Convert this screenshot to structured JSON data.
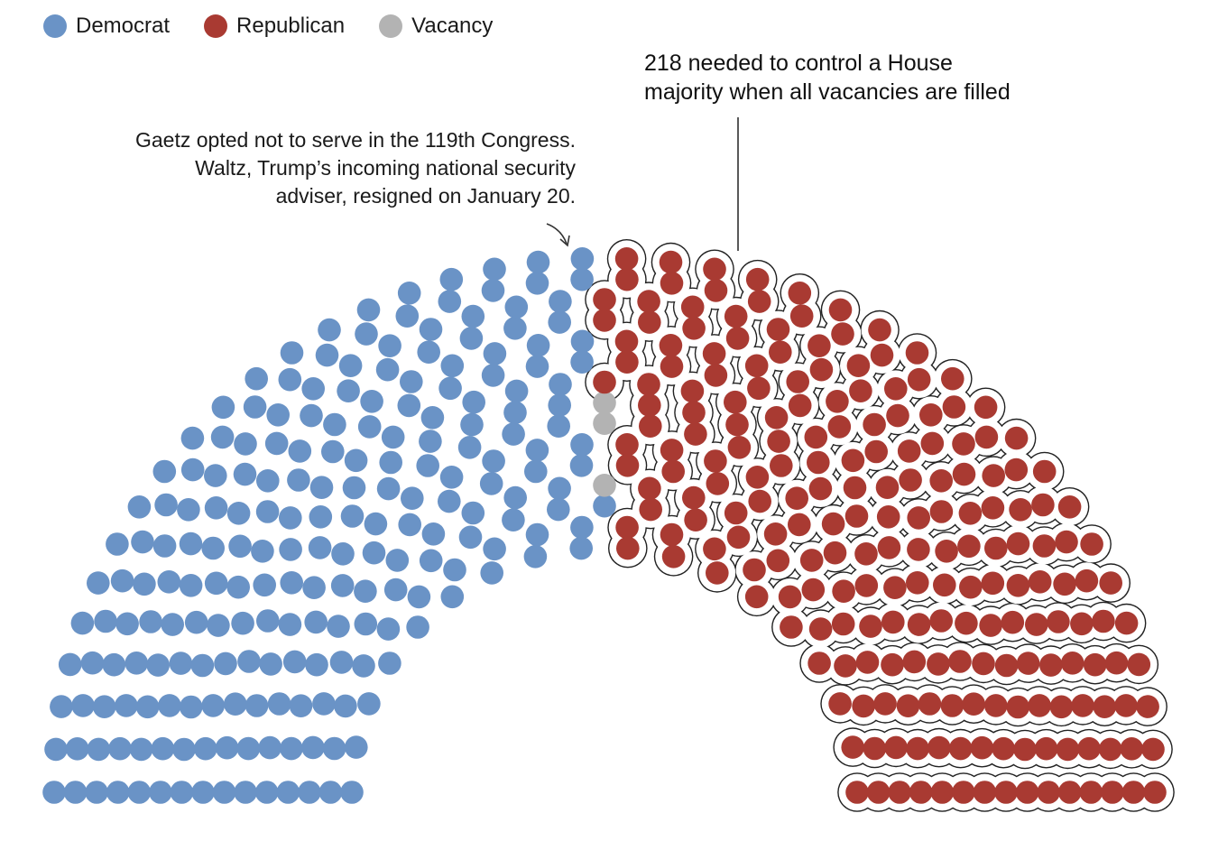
{
  "legend": [
    {
      "label": "Democrat",
      "color": "#6a93c6"
    },
    {
      "label": "Republican",
      "color": "#a93a32"
    },
    {
      "label": "Vacancy",
      "color": "#b3b3b3"
    }
  ],
  "annotations": {
    "vacancy_note": [
      "Gaetz opted not to serve in the 119th Congress.",
      "Waltz, Trump’s incoming national security",
      "adviser, resigned on January 20."
    ],
    "majority_note": [
      "218 needed to control a House",
      "majority when all vacancies are filled"
    ]
  },
  "chart_data": {
    "type": "parliament",
    "total_seats": 435,
    "majority_needed": 218,
    "series": [
      {
        "name": "Democrat",
        "seats": 215,
        "color": "#6a93c6"
      },
      {
        "name": "Vacancy",
        "seats": 3,
        "color": "#b3b3b3"
      },
      {
        "name": "Republican",
        "seats": 217,
        "color": "#a93a32"
      }
    ],
    "legend": [
      "Democrat",
      "Republican",
      "Vacancy"
    ]
  }
}
